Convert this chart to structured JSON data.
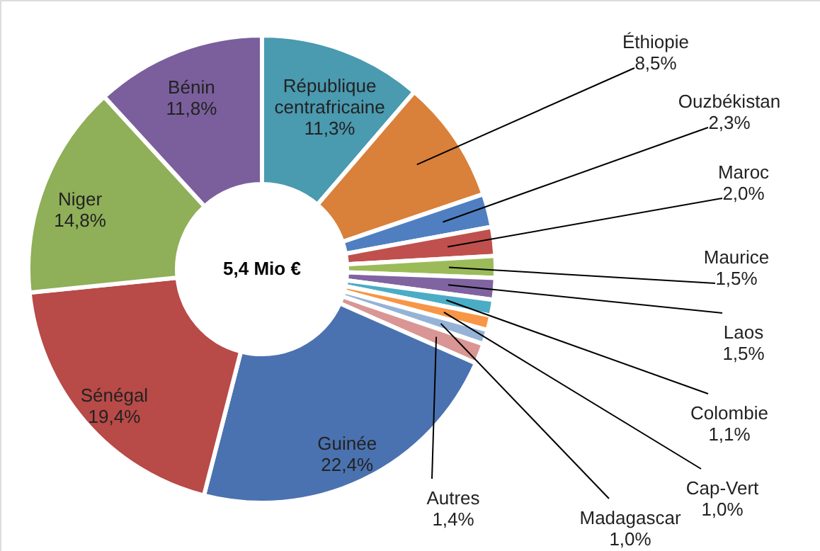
{
  "chart_data": {
    "type": "donut",
    "categories": [
      "République centrafricaine",
      "Éthiopie",
      "Ouzbékistan",
      "Maroc",
      "Maurice",
      "Laos",
      "Colombie",
      "Cap-Vert",
      "Madagascar",
      "Autres",
      "Guinée",
      "Sénégal",
      "Niger",
      "Bénin"
    ],
    "values": [
      11.3,
      8.5,
      2.3,
      2.0,
      1.5,
      1.5,
      1.1,
      1.0,
      1.0,
      1.4,
      22.4,
      19.4,
      14.8,
      11.8
    ],
    "value_labels": [
      "11,3%",
      "8,5%",
      "2,3%",
      "2,0%",
      "1,5%",
      "1,5%",
      "1,1%",
      "1,0%",
      "1,0%",
      "1,4%",
      "22,4%",
      "19,4%",
      "14,8%",
      "11,8%"
    ],
    "colors": [
      "#4a9ab0",
      "#d9803a",
      "#4f7fc0",
      "#c0504d",
      "#9bbb59",
      "#8064a2",
      "#4bacc6",
      "#f79646",
      "#95b3d7",
      "#d99694",
      "#4a72b0",
      "#b84a47",
      "#8faf58",
      "#7a5f9c"
    ],
    "annotations": [
      "5,4 Mio €"
    ]
  }
}
